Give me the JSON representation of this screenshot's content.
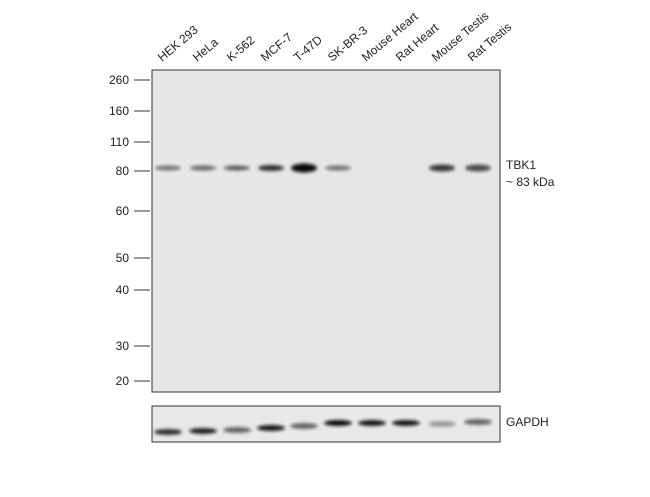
{
  "lanes": [
    "HEK 293",
    "HeLa",
    "K-562",
    "MCF-7",
    "T-47D",
    "SK-BR-3",
    "Mouse Heart",
    "Rat Heart",
    "Mouse Testis",
    "Rat Testis"
  ],
  "markers": [
    "260",
    "160",
    "110",
    "80",
    "60",
    "50",
    "40",
    "30",
    "20"
  ],
  "target": {
    "name": "TBK1",
    "size": "~ 83 kDa"
  },
  "loading_control": "GAPDH"
}
